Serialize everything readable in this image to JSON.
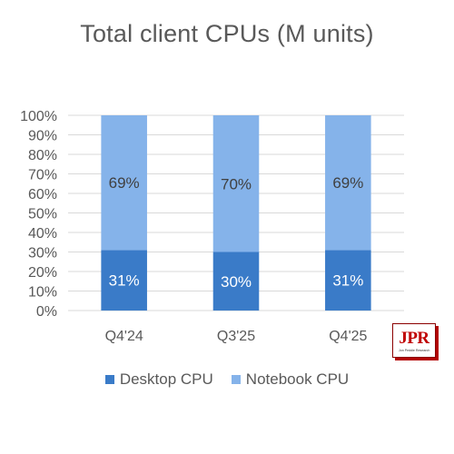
{
  "chart_data": {
    "type": "bar",
    "stacked": true,
    "percent": true,
    "title": "Total client CPUs (M units)",
    "categories": [
      "Q4'24",
      "Q3'25",
      "Q4'25"
    ],
    "series": [
      {
        "name": "Desktop CPU",
        "values": [
          31,
          30,
          31
        ],
        "labels": [
          "31%",
          "30%",
          "31%"
        ],
        "color": "#3a7bc8",
        "label_color": "#ffffff"
      },
      {
        "name": "Notebook CPU",
        "values": [
          69,
          70,
          69
        ],
        "labels": [
          "69%",
          "70%",
          "69%"
        ],
        "color": "#85b3ea",
        "label_color": "#404040"
      }
    ],
    "ylim": [
      0,
      100
    ],
    "yticks": [
      "0%",
      "10%",
      "20%",
      "30%",
      "40%",
      "50%",
      "60%",
      "70%",
      "80%",
      "90%",
      "100%"
    ],
    "grid": true,
    "legend_position": "bottom"
  },
  "logo": {
    "text": "JPR",
    "subtext": "Jon Peddie Research"
  }
}
